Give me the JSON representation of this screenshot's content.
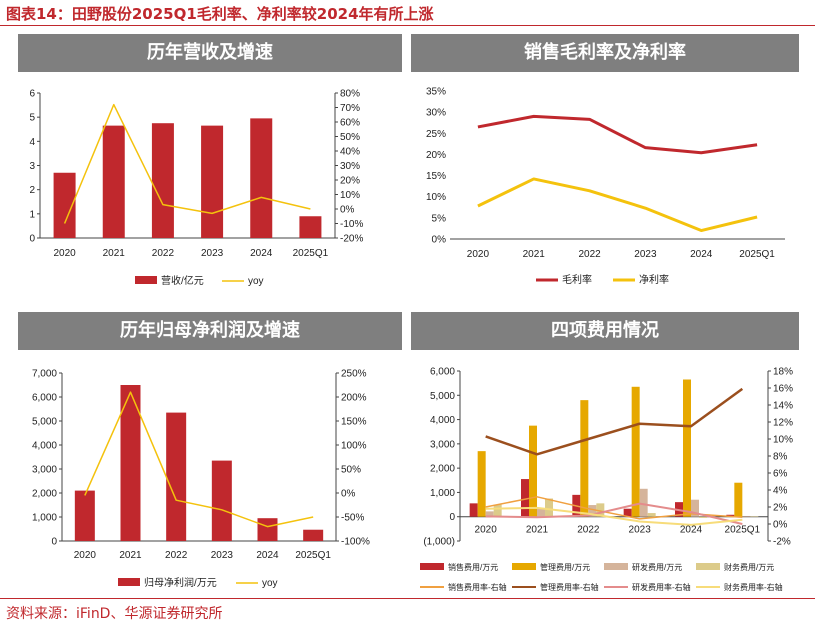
{
  "figure_title": "图表14：田野股份2025Q1毛利率、净利率较2024年有所上涨",
  "source": "资料来源：iFinD、华源证券研究所",
  "colors": {
    "red": "#c0282d",
    "yellow": "#f4c20d",
    "gold": "#e6a800",
    "brown": "#9b4f1e",
    "tan": "#d5b49b",
    "khaki": "#dccb8a",
    "pink": "#e48c8c",
    "peach": "#f2cfa4",
    "orange_line": "#f0a040",
    "lightyellow": "#f7dc7a",
    "header": "#7f7f7f"
  },
  "chart_data": [
    {
      "type": "bar",
      "title": "历年营收及增速",
      "categories": [
        "2020",
        "2021",
        "2022",
        "2023",
        "2024",
        "2025Q1"
      ],
      "series": [
        {
          "name": "营收/亿元",
          "type": "bar",
          "axis": "left",
          "values": [
            2.7,
            4.65,
            4.75,
            4.65,
            4.95,
            0.9
          ]
        },
        {
          "name": "yoy",
          "type": "line",
          "axis": "right",
          "values": [
            -10,
            72,
            3,
            -3,
            8,
            0
          ]
        }
      ],
      "ylim": [
        0,
        6
      ],
      "yticks": [
        "0",
        "1",
        "2",
        "3",
        "4",
        "5",
        "6"
      ],
      "y2lim": [
        -20,
        80
      ],
      "y2ticks": [
        "-20%",
        "-10%",
        "0%",
        "10%",
        "20%",
        "30%",
        "40%",
        "50%",
        "60%",
        "70%",
        "80%"
      ],
      "legend": "bottom"
    },
    {
      "type": "line",
      "title": "销售毛利率及净利率",
      "categories": [
        "2020",
        "2021",
        "2022",
        "2023",
        "2024",
        "2025Q1"
      ],
      "series": [
        {
          "name": "毛利率",
          "values": [
            26.5,
            29.0,
            28.3,
            21.6,
            20.4,
            22.3
          ]
        },
        {
          "name": "净利率",
          "values": [
            7.8,
            14.2,
            11.4,
            7.3,
            2.0,
            5.2
          ]
        }
      ],
      "ylim": [
        0,
        35
      ],
      "yticks": [
        "0%",
        "5%",
        "10%",
        "15%",
        "20%",
        "25%",
        "30%",
        "35%"
      ],
      "legend": "bottom"
    },
    {
      "type": "bar",
      "title": "历年归母净利润及增速",
      "categories": [
        "2020",
        "2021",
        "2022",
        "2023",
        "2024",
        "2025Q1"
      ],
      "series": [
        {
          "name": "归母净利润/万元",
          "type": "bar",
          "axis": "left",
          "values": [
            2100,
            6500,
            5350,
            3350,
            950,
            470
          ]
        },
        {
          "name": "yoy",
          "type": "line",
          "axis": "right",
          "values": [
            -5,
            210,
            -15,
            -35,
            -70,
            -50
          ]
        }
      ],
      "ylim": [
        0,
        7000
      ],
      "yticks": [
        "0",
        "1,000",
        "2,000",
        "3,000",
        "4,000",
        "5,000",
        "6,000",
        "7,000"
      ],
      "y2lim": [
        -100,
        250
      ],
      "y2ticks": [
        "-100%",
        "-50%",
        "0%",
        "50%",
        "100%",
        "150%",
        "200%",
        "250%"
      ],
      "legend": "bottom"
    },
    {
      "type": "bar",
      "title": "四项费用情况",
      "categories": [
        "2020",
        "2021",
        "2022",
        "2023",
        "2024",
        "2025Q1"
      ],
      "series": [
        {
          "name": "销售费用/万元",
          "type": "bar",
          "axis": "left",
          "values": [
            550,
            1550,
            900,
            330,
            600,
            80
          ]
        },
        {
          "name": "管理费用/万元",
          "type": "bar",
          "axis": "left",
          "values": [
            2700,
            3750,
            4800,
            5350,
            5650,
            1400
          ]
        },
        {
          "name": "研发费用/万元",
          "type": "bar",
          "axis": "left",
          "values": [
            220,
            350,
            480,
            1150,
            700,
            30
          ]
        },
        {
          "name": "财务费用/万元",
          "type": "bar",
          "axis": "left",
          "values": [
            500,
            750,
            550,
            150,
            -50,
            10
          ]
        },
        {
          "name": "销售费用率-右轴",
          "type": "line",
          "axis": "right",
          "values": [
            2.0,
            3.2,
            1.8,
            0.6,
            1.2,
            0.8
          ]
        },
        {
          "name": "管理费用率-右轴",
          "type": "line",
          "axis": "right",
          "values": [
            10.3,
            8.2,
            10.0,
            11.8,
            11.5,
            15.9
          ]
        },
        {
          "name": "研发费用率-右轴",
          "type": "line",
          "axis": "right",
          "values": [
            0.9,
            0.8,
            1.0,
            2.4,
            1.4,
            0.0
          ]
        },
        {
          "name": "财务费用率-右轴",
          "type": "line",
          "axis": "right",
          "values": [
            1.8,
            1.9,
            1.2,
            0.3,
            -0.1,
            0.5
          ]
        }
      ],
      "ylim": [
        -1000,
        6000
      ],
      "yticks": [
        "(1,000)",
        "0",
        "1,000",
        "2,000",
        "3,000",
        "4,000",
        "5,000",
        "6,000"
      ],
      "y2lim": [
        -2,
        18
      ],
      "y2ticks": [
        "-2%",
        "0%",
        "2%",
        "4%",
        "6%",
        "8%",
        "10%",
        "12%",
        "14%",
        "16%",
        "18%"
      ],
      "legend": "bottom"
    }
  ]
}
